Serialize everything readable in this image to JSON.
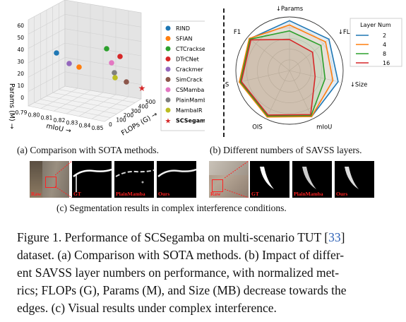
{
  "panel_a": {
    "caption": "(a) Comparison with SOTA methods.",
    "z_axis": {
      "label": "Params (M) →",
      "ticks": [
        "0",
        "10",
        "20",
        "30",
        "40",
        "50",
        "60"
      ]
    },
    "x_axis": {
      "label": "mIoU →",
      "ticks": [
        "0.79",
        "0.80",
        "0.81",
        "0.82",
        "0.83",
        "0.84",
        "0.85"
      ]
    },
    "y_axis": {
      "label": "FLOPs (G) →",
      "ticks": [
        "0",
        "100",
        "200",
        "300",
        "400",
        "500"
      ]
    },
    "legend": [
      {
        "name": "RIND",
        "color": "#1f77b4",
        "marker": "circle"
      },
      {
        "name": "SFIAN",
        "color": "#ff7f0e",
        "marker": "circle"
      },
      {
        "name": "CTCrackseg",
        "color": "#2ca02c",
        "marker": "circle"
      },
      {
        "name": "DTrCNet",
        "color": "#d62728",
        "marker": "circle"
      },
      {
        "name": "Crackmer",
        "color": "#9467bd",
        "marker": "circle"
      },
      {
        "name": "SimCrack",
        "color": "#8c564b",
        "marker": "circle"
      },
      {
        "name": "CSMamba",
        "color": "#e377c2",
        "marker": "circle"
      },
      {
        "name": "PlainMamba",
        "color": "#7f7f7f",
        "marker": "circle"
      },
      {
        "name": "MambaIR",
        "color": "#bcbd22",
        "marker": "circle"
      },
      {
        "name": "SCSegamba",
        "color": "#d62728",
        "marker": "star"
      }
    ]
  },
  "panel_b": {
    "caption": "(b) Different numbers of SAVSS layers.",
    "axes": [
      "↓Params",
      "↓FLOPs",
      "↓Size",
      "mIoU",
      "OIS",
      "ODS",
      "F1"
    ],
    "legend_title": "Layer Num",
    "series": [
      {
        "name": "2",
        "color": "#1f77b4",
        "values": [
          0.93,
          0.94,
          0.93,
          0.95,
          0.95,
          0.95,
          0.95
        ]
      },
      {
        "name": "4",
        "color": "#ff7f0e",
        "values": [
          0.85,
          0.86,
          0.83,
          0.95,
          0.96,
          0.96,
          0.96
        ]
      },
      {
        "name": "8",
        "color": "#2ca02c",
        "values": [
          0.74,
          0.75,
          0.68,
          0.93,
          0.94,
          0.94,
          0.94
        ]
      },
      {
        "name": "16",
        "color": "#d62728",
        "values": [
          0.58,
          0.55,
          0.49,
          0.91,
          0.92,
          0.92,
          0.92
        ]
      }
    ]
  },
  "panel_c": {
    "caption": "(c) Segmentation results in complex interference conditions.",
    "labels": [
      "Raw",
      "GT",
      "PlainMamba",
      "Ours"
    ]
  },
  "figure_caption": {
    "line1_before_ref": "Figure 1. Performance of SCSegamba on multi-scenario TUT [",
    "ref": "33",
    "line1_after_ref": "]",
    "line2": "dataset. (a) Comparison with SOTA methods. (b) Impact of differ-",
    "line3": "ent SAVSS layer numbers on performance, with normalized met-",
    "line4": "rics; FLOPs (G), Params (M), and Size (MB) decrease towards the",
    "line5": "edges. (c) Visual results under complex interference."
  }
}
